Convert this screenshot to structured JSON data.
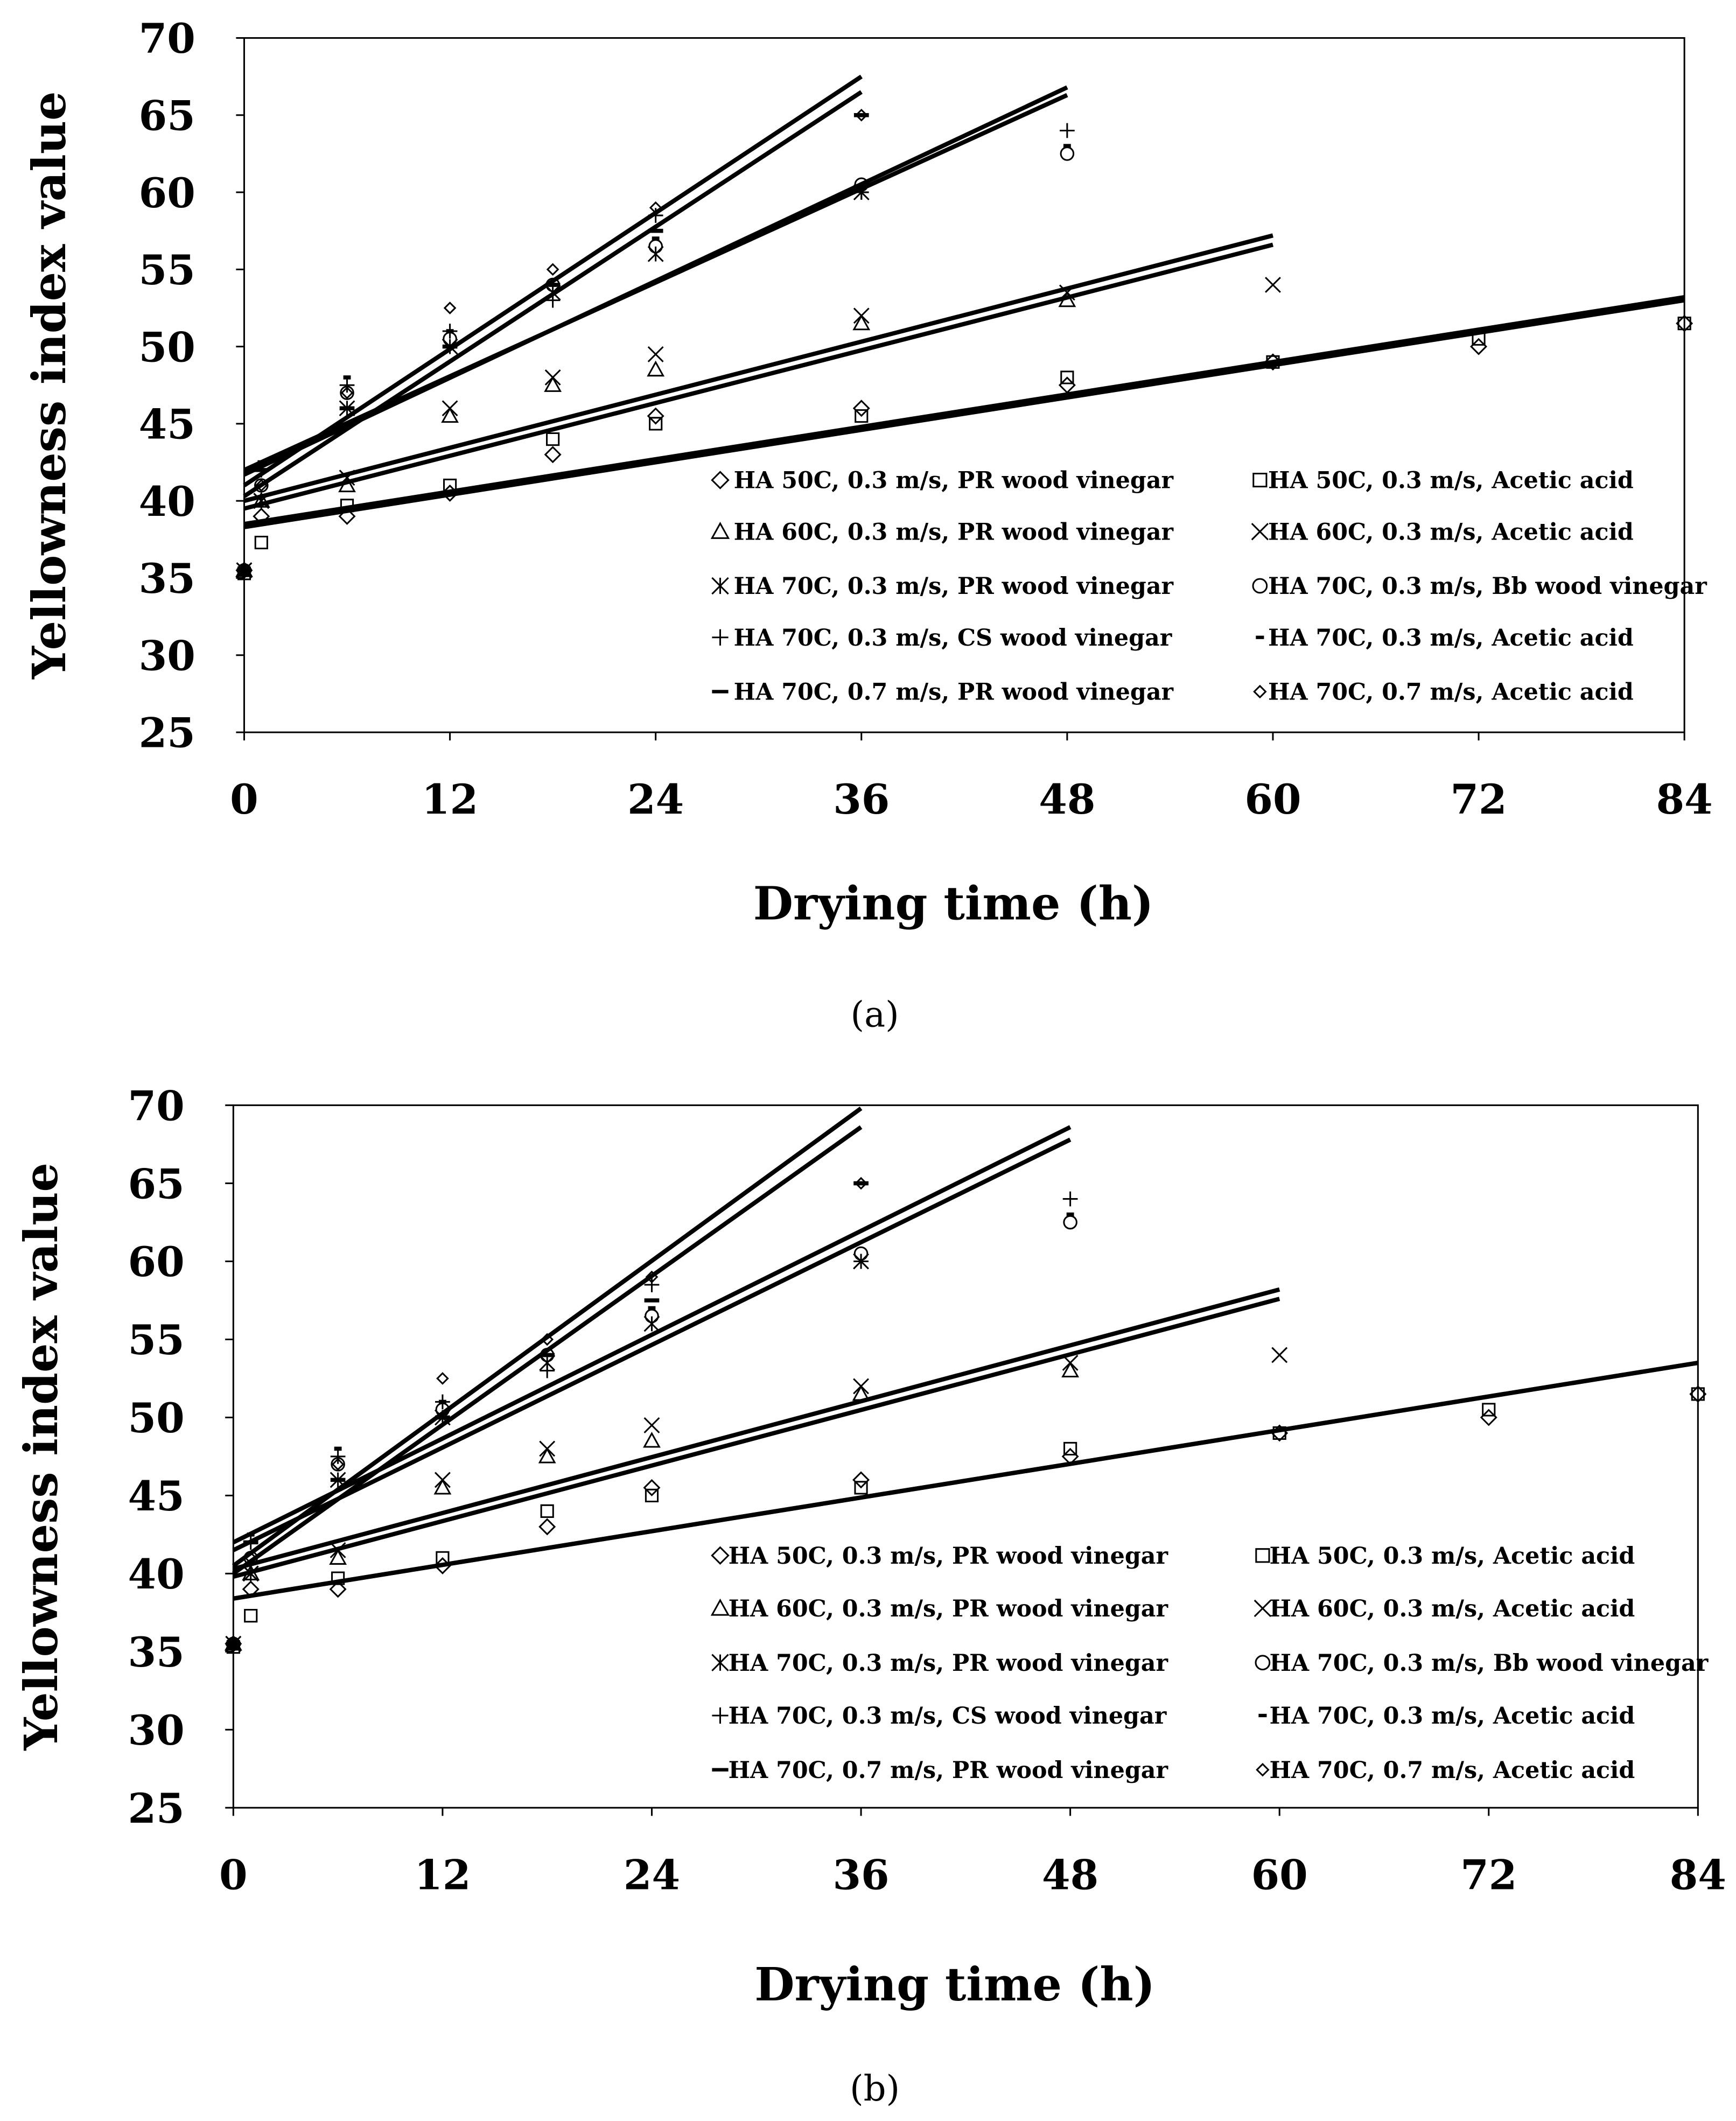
{
  "chart_data": [
    {
      "type": "scatter",
      "panel_label": "(a)",
      "xlabel": "Drying time (h)",
      "ylabel": "Yellowness index value",
      "xlim": [
        0,
        84
      ],
      "ylim": [
        25,
        70
      ],
      "xticks": [
        0,
        12,
        24,
        36,
        48,
        60,
        72,
        84
      ],
      "yticks": [
        25,
        30,
        35,
        40,
        45,
        50,
        55,
        60,
        65,
        70
      ],
      "legend_placement": "bottom-right",
      "series": [
        {
          "name": "HA 50C, 0.3 m/s, PR wood vinegar",
          "marker": "diamond",
          "x": [
            0,
            1,
            6,
            12,
            18,
            24,
            36,
            48,
            60,
            72,
            84
          ],
          "y": [
            35.5,
            39,
            39,
            40.5,
            43,
            45.5,
            46,
            47.5,
            49,
            50,
            51.5
          ],
          "trend": [
            [
              0,
              38.3
            ],
            [
              84,
              53.0
            ]
          ]
        },
        {
          "name": "HA 50C, 0.3 m/s, Acetic acid",
          "marker": "square",
          "x": [
            0,
            1,
            6,
            12,
            18,
            24,
            36,
            48,
            60,
            72,
            84
          ],
          "y": [
            35.3,
            37.3,
            39.7,
            41,
            44,
            45,
            45.5,
            48,
            49,
            50.5,
            51.5
          ],
          "trend": [
            [
              0,
              38.5
            ],
            [
              84,
              53.2
            ]
          ]
        },
        {
          "name": "HA 60C, 0.3 m/s, PR wood vinegar",
          "marker": "triangle",
          "x": [
            0,
            1,
            6,
            12,
            18,
            24,
            36,
            48
          ],
          "y": [
            35.5,
            40,
            41,
            45.5,
            47.5,
            48.5,
            51.5,
            53
          ],
          "trend": [
            [
              0,
              39.5
            ],
            [
              60,
              56.6
            ]
          ]
        },
        {
          "name": "HA 60C, 0.3 m/s, Acetic acid",
          "marker": "x",
          "x": [
            0,
            1,
            6,
            12,
            18,
            24,
            36,
            48,
            60
          ],
          "y": [
            35.5,
            40,
            41.5,
            46,
            48,
            49.5,
            52,
            53.5,
            54
          ],
          "trend": [
            [
              0,
              40.0
            ],
            [
              60,
              57.2
            ]
          ]
        },
        {
          "name": "HA 70C, 0.3 m/s, PR wood vinegar",
          "marker": "asterisk",
          "x": [
            0,
            1,
            6,
            12,
            18,
            24,
            36
          ],
          "y": [
            35.5,
            40,
            46,
            50,
            53.5,
            56,
            60
          ],
          "trend": [
            [
              0,
              42.0
            ],
            [
              48,
              66.3
            ]
          ]
        },
        {
          "name": "HA 70C, 0.3 m/s, Bb wood vinegar",
          "marker": "circle",
          "x": [
            0,
            1,
            6,
            12,
            18,
            24,
            36,
            48
          ],
          "y": [
            35.5,
            41,
            47,
            50.5,
            54,
            56.5,
            60.5,
            62.5
          ],
          "trend": [
            [
              0,
              41.7
            ],
            [
              48,
              66.8
            ]
          ]
        },
        {
          "name": "HA 70C, 0.3 m/s, CS wood vinegar",
          "marker": "plus",
          "x": [
            0,
            1,
            6,
            12,
            18,
            24,
            36,
            48
          ],
          "y": [
            35.5,
            42,
            47.5,
            51,
            53,
            58.5,
            60,
            64
          ],
          "trend": [
            [
              0,
              40.3
            ],
            [
              36,
              66.5
            ]
          ]
        },
        {
          "name": "HA 70C, 0.3 m/s, Acetic acid",
          "marker": "dash",
          "x": [
            0,
            1,
            6,
            12,
            18,
            24,
            36,
            48
          ],
          "y": [
            35.3,
            42.5,
            48,
            51,
            54,
            57,
            65,
            63
          ],
          "trend": [
            [
              0,
              41.0
            ],
            [
              36,
              67.5
            ]
          ]
        },
        {
          "name": "HA 70C, 0.7 m/s, PR wood vinegar",
          "marker": "bar",
          "x": [
            0,
            1,
            6,
            12,
            18,
            24,
            36
          ],
          "y": [
            35.5,
            42,
            46,
            50,
            54,
            57.5,
            65
          ],
          "trend": null
        },
        {
          "name": "HA 70C, 0.7 m/s, Acetic acid",
          "marker": "small-diamond",
          "x": [
            0,
            1,
            6,
            12,
            18,
            24,
            36
          ],
          "y": [
            35.5,
            41,
            47,
            52.5,
            55,
            59,
            65
          ],
          "trend": null
        }
      ]
    },
    {
      "type": "scatter",
      "panel_label": "(b)",
      "xlabel": "Drying time (h)",
      "ylabel": "Yellowness index value",
      "xlim": [
        0,
        84
      ],
      "ylim": [
        25,
        70
      ],
      "xticks": [
        0,
        12,
        24,
        36,
        48,
        60,
        72,
        84
      ],
      "yticks": [
        25,
        30,
        35,
        40,
        45,
        50,
        55,
        60,
        65,
        70
      ],
      "legend_placement": "bottom-right",
      "series": [
        {
          "name": "HA 50C, 0.3 m/s, PR wood vinegar",
          "marker": "diamond",
          "x": [
            0,
            1,
            6,
            12,
            18,
            24,
            36,
            48,
            60,
            72,
            84
          ],
          "y": [
            35.5,
            39,
            39,
            40.5,
            43,
            45.5,
            46,
            47.5,
            49,
            50,
            51.5
          ],
          "trend": [
            [
              0,
              38.4
            ],
            [
              84,
              53.5
            ]
          ]
        },
        {
          "name": "HA 50C, 0.3 m/s, Acetic acid",
          "marker": "square",
          "x": [
            0,
            1,
            6,
            12,
            18,
            24,
            36,
            48,
            60,
            72,
            84
          ],
          "y": [
            35.3,
            37.3,
            39.7,
            41,
            44,
            45,
            45.5,
            48,
            49,
            50.5,
            51.5
          ],
          "trend": [
            [
              0,
              38.4
            ],
            [
              84,
              53.5
            ]
          ]
        },
        {
          "name": "HA 60C, 0.3 m/s, PR wood vinegar",
          "marker": "triangle",
          "x": [
            0,
            1,
            6,
            12,
            18,
            24,
            36,
            48
          ],
          "y": [
            35.5,
            40,
            41,
            45.5,
            47.5,
            48.5,
            51.5,
            53
          ],
          "trend": [
            [
              0,
              39.8
            ],
            [
              60,
              57.6
            ]
          ]
        },
        {
          "name": "HA 60C, 0.3 m/s, Acetic acid",
          "marker": "x",
          "x": [
            0,
            1,
            6,
            12,
            18,
            24,
            36,
            48,
            60
          ],
          "y": [
            35.5,
            40,
            41.5,
            46,
            48,
            49.5,
            52,
            53.5,
            54
          ],
          "trend": [
            [
              0,
              40.3
            ],
            [
              60,
              58.2
            ]
          ]
        },
        {
          "name": "HA 70C, 0.3 m/s, PR wood vinegar",
          "marker": "asterisk",
          "x": [
            0,
            1,
            6,
            12,
            18,
            24,
            36
          ],
          "y": [
            35.5,
            40,
            46,
            50,
            53.5,
            56,
            60
          ],
          "trend": [
            [
              0,
              41.5
            ],
            [
              48,
              67.8
            ]
          ]
        },
        {
          "name": "HA 70C, 0.3 m/s, Bb wood vinegar",
          "marker": "circle",
          "x": [
            0,
            1,
            6,
            12,
            18,
            24,
            36,
            48
          ],
          "y": [
            35.5,
            41,
            47,
            50.5,
            54,
            56.5,
            60.5,
            62.5
          ],
          "trend": [
            [
              0,
              42.0
            ],
            [
              48,
              68.6
            ]
          ]
        },
        {
          "name": "HA 70C, 0.3 m/s, CS wood vinegar",
          "marker": "plus",
          "x": [
            0,
            1,
            6,
            12,
            18,
            24,
            36,
            48
          ],
          "y": [
            35.5,
            42,
            47.5,
            51,
            53,
            58.5,
            60,
            64
          ],
          "trend": [
            [
              0,
              40.0
            ],
            [
              36,
              68.6
            ]
          ]
        },
        {
          "name": "HA 70C, 0.3 m/s, Acetic acid",
          "marker": "dash",
          "x": [
            0,
            1,
            6,
            12,
            18,
            24,
            36,
            48
          ],
          "y": [
            35.3,
            42.5,
            48,
            51,
            54,
            57,
            65,
            63
          ],
          "trend": [
            [
              0,
              40.5
            ],
            [
              36,
              69.8
            ]
          ]
        },
        {
          "name": "HA 70C, 0.7 m/s, PR wood vinegar",
          "marker": "bar",
          "x": [
            0,
            1,
            6,
            12,
            18,
            24,
            36
          ],
          "y": [
            35.5,
            42,
            46,
            50,
            54,
            57.5,
            65
          ],
          "trend": null
        },
        {
          "name": "HA 70C, 0.7 m/s, Acetic acid",
          "marker": "small-diamond",
          "x": [
            0,
            1,
            6,
            12,
            18,
            24,
            36
          ],
          "y": [
            35.5,
            41,
            47,
            52.5,
            55,
            59,
            65
          ],
          "trend": null
        }
      ]
    }
  ]
}
